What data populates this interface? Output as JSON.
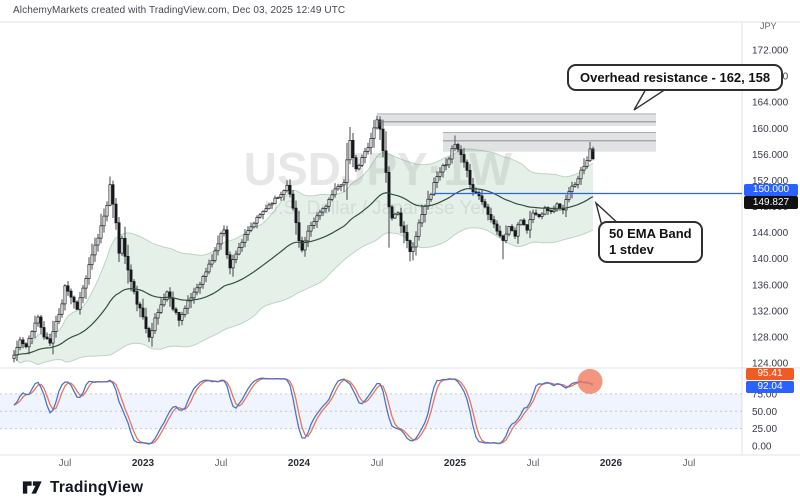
{
  "header": {
    "attribution": "AlchemyMarkets created with TradingView.com, Dec 03, 2025 12:49 UTC"
  },
  "watermark": {
    "line1": "USDJPY·1W",
    "line2": "U.S. Dollar / Japanese Yen"
  },
  "annotations": {
    "resistance_callout": "Overhead resistance - 162, 158",
    "ema_callout_line1": "50 EMA Band",
    "ema_callout_line2": "1 stdev"
  },
  "price_scale": {
    "currency": "JPY",
    "ticks": [
      172,
      168,
      164,
      160,
      156,
      152,
      148,
      144,
      140,
      136,
      132,
      128,
      124
    ],
    "line_label": "150.000",
    "ema_label": "149.827"
  },
  "stoch_scale": {
    "ticks": [
      75,
      50,
      25,
      0
    ],
    "d_label": "95.41",
    "k_label": "92.04"
  },
  "footer": {
    "brand": "TradingView"
  },
  "colors": {
    "accent_blue": "#2962ff",
    "label_black": "#111111",
    "stoch_orange_chip": "#ef5b25",
    "candle_ink": "#16181d",
    "ema_line": "#33503f",
    "ema_band_fill": "rgba(96,168,110,0.16)",
    "ema_band_edge": "rgba(90,150,100,0.35)",
    "zone_fill": "rgba(120,124,130,0.22)",
    "zone_line": "rgba(110,114,120,0.5)",
    "stoch_k": "#4f74c4",
    "stoch_d": "#e8765a",
    "stoch_band": "rgba(41,98,255,0.07)",
    "stoch_grid": "#b6c9e0",
    "separator": "#e0e3eb",
    "axis_text": "#363a45",
    "axis_text_minor": "#5f646e",
    "circle_marker": "rgba(239,123,98,0.8)"
  },
  "chart_data": {
    "type": "candlestick",
    "symbol": "USDJPY",
    "timeframe": "1W",
    "title": "USDJPY 1W — U.S. Dollar / Japanese Yen",
    "ylabel": "JPY",
    "ylim": [
      123.2,
      176.3
    ],
    "grid": false,
    "weeks_total": 194,
    "weekly_close_anchors": [
      [
        0,
        125.2
      ],
      [
        2,
        127.5
      ],
      [
        4,
        126.3
      ],
      [
        6,
        129.2
      ],
      [
        8,
        131.0
      ],
      [
        10,
        128.0
      ],
      [
        12,
        127.1
      ],
      [
        14,
        130.2
      ],
      [
        16,
        133.5
      ],
      [
        17,
        136.0
      ],
      [
        19,
        134.2
      ],
      [
        21,
        132.4
      ],
      [
        23,
        135.4
      ],
      [
        25,
        138.7
      ],
      [
        27,
        141.8
      ],
      [
        29,
        144.9
      ],
      [
        31,
        148.8
      ],
      [
        32,
        151.2
      ],
      [
        33,
        147.6
      ],
      [
        34,
        145.9
      ],
      [
        35,
        141.2
      ],
      [
        36,
        143.0
      ],
      [
        38,
        138.2
      ],
      [
        40,
        134.6
      ],
      [
        42,
        132.1
      ],
      [
        44,
        129.4
      ],
      [
        45,
        128.1
      ],
      [
        47,
        130.6
      ],
      [
        49,
        132.9
      ],
      [
        51,
        134.9
      ],
      [
        53,
        132.6
      ],
      [
        55,
        130.7
      ],
      [
        57,
        132.3
      ],
      [
        60,
        134.9
      ],
      [
        63,
        137.1
      ],
      [
        66,
        139.9
      ],
      [
        68,
        142.4
      ],
      [
        70,
        144.7
      ],
      [
        71,
        141.3
      ],
      [
        72,
        138.5
      ],
      [
        74,
        141.0
      ],
      [
        77,
        143.4
      ],
      [
        80,
        145.5
      ],
      [
        83,
        147.3
      ],
      [
        86,
        148.7
      ],
      [
        89,
        149.9
      ],
      [
        91,
        151.5
      ],
      [
        93,
        147.7
      ],
      [
        95,
        143.3
      ],
      [
        96,
        141.3
      ],
      [
        98,
        143.9
      ],
      [
        101,
        146.5
      ],
      [
        104,
        148.3
      ],
      [
        107,
        150.4
      ],
      [
        110,
        152.1
      ],
      [
        111,
        154.9
      ],
      [
        112,
        157.9
      ],
      [
        114,
        153.5
      ],
      [
        116,
        155.3
      ],
      [
        118,
        157.4
      ],
      [
        120,
        159.9
      ],
      [
        121,
        161.3
      ],
      [
        122,
        159.7
      ],
      [
        123,
        157.1
      ],
      [
        124,
        152.7
      ],
      [
        125,
        148.3
      ],
      [
        126,
        146.5
      ],
      [
        128,
        147.1
      ],
      [
        130,
        143.7
      ],
      [
        132,
        141.0
      ],
      [
        134,
        143.5
      ],
      [
        136,
        146.7
      ],
      [
        138,
        149.0
      ],
      [
        140,
        151.7
      ],
      [
        142,
        153.5
      ],
      [
        144,
        154.7
      ],
      [
        146,
        156.5
      ],
      [
        147,
        157.5
      ],
      [
        149,
        155.7
      ],
      [
        151,
        153.1
      ],
      [
        153,
        150.5
      ],
      [
        155,
        149.7
      ],
      [
        157,
        147.9
      ],
      [
        159,
        146.3
      ],
      [
        161,
        144.4
      ],
      [
        163,
        142.7
      ],
      [
        165,
        145.0
      ],
      [
        167,
        143.5
      ],
      [
        169,
        146.0
      ],
      [
        171,
        144.5
      ],
      [
        173,
        147.1
      ],
      [
        175,
        146.4
      ],
      [
        177,
        148.0
      ],
      [
        179,
        147.1
      ],
      [
        181,
        148.3
      ],
      [
        183,
        147.4
      ],
      [
        185,
        150.1
      ],
      [
        187,
        151.7
      ],
      [
        189,
        153.4
      ],
      [
        191,
        155.4
      ],
      [
        192,
        156.9
      ],
      [
        193,
        155.6
      ]
    ],
    "wick_overrides": {
      "32": [
        152.6,
        null
      ],
      "45": [
        null,
        127.2
      ],
      "55": [
        null,
        129.6
      ],
      "112": [
        160.2,
        null
      ],
      "121": [
        161.95,
        null
      ],
      "125": [
        null,
        141.7
      ],
      "132": [
        null,
        139.58
      ],
      "147": [
        158.9,
        null
      ],
      "163": [
        null,
        139.9
      ],
      "192": [
        157.9,
        null
      ]
    },
    "ema_period": 50,
    "band_stdev_mult": 1.15,
    "resistance_zones": [
      {
        "price_from": 160.35,
        "price_to": 162.2,
        "stripe_price": 161.0,
        "week_from": 121,
        "week_to": 214,
        "label": "162"
      },
      {
        "price_from": 156.4,
        "price_to": 159.35,
        "stripe_price": 158.1,
        "week_from": 143,
        "week_to": 214,
        "label": "158"
      }
    ],
    "horizontal_line": {
      "price": 150.0,
      "week_from": 140
    },
    "stochastic": {
      "k_period": 14,
      "smoothing": 3,
      "d_period": 3,
      "range": [
        0,
        100
      ],
      "band": [
        25,
        75
      ],
      "grid_levels": [
        75,
        50,
        25
      ],
      "last_d": 95.41,
      "last_k": 92.04
    },
    "highlight_circle": {
      "week": 192,
      "value": 93
    },
    "time_labels": [
      {
        "text": "Jul",
        "week": 17,
        "major": false
      },
      {
        "text": "2023",
        "week": 43,
        "major": true
      },
      {
        "text": "Jul",
        "week": 69,
        "major": false
      },
      {
        "text": "2024",
        "week": 95,
        "major": true
      },
      {
        "text": "Jul",
        "week": 121,
        "major": false
      },
      {
        "text": "2025",
        "week": 147,
        "major": true
      },
      {
        "text": "Jul",
        "week": 173,
        "major": false
      },
      {
        "text": "2026",
        "week": 199,
        "major": true
      },
      {
        "text": "Jul",
        "week": 225,
        "major": false
      }
    ]
  }
}
